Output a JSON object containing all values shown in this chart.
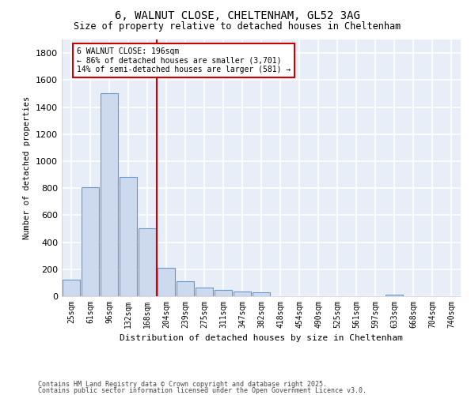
{
  "title_line1": "6, WALNUT CLOSE, CHELTENHAM, GL52 3AG",
  "title_line2": "Size of property relative to detached houses in Cheltenham",
  "xlabel": "Distribution of detached houses by size in Cheltenham",
  "ylabel": "Number of detached properties",
  "bar_labels": [
    "25sqm",
    "61sqm",
    "96sqm",
    "132sqm",
    "168sqm",
    "204sqm",
    "239sqm",
    "275sqm",
    "311sqm",
    "347sqm",
    "382sqm",
    "418sqm",
    "454sqm",
    "490sqm",
    "525sqm",
    "561sqm",
    "597sqm",
    "633sqm",
    "668sqm",
    "704sqm",
    "740sqm"
  ],
  "bar_values": [
    125,
    805,
    1500,
    885,
    500,
    210,
    110,
    65,
    48,
    33,
    28,
    0,
    0,
    0,
    0,
    0,
    0,
    10,
    0,
    0,
    0
  ],
  "bar_color": "#ccd9ee",
  "bar_edge_color": "#6699cc",
  "vline_x": 4.5,
  "vline_color": "#cc0000",
  "annotation_title": "6 WALNUT CLOSE: 196sqm",
  "annotation_line1": "← 86% of detached houses are smaller (3,701)",
  "annotation_line2": "14% of semi-detached houses are larger (581) →",
  "annotation_box_color": "#cc0000",
  "ylim": [
    0,
    1900
  ],
  "yticks": [
    0,
    200,
    400,
    600,
    800,
    1000,
    1200,
    1400,
    1600,
    1800
  ],
  "plot_bg_color": "#e8eef8",
  "fig_bg_color": "#ffffff",
  "grid_color": "#ffffff",
  "footer_line1": "Contains HM Land Registry data © Crown copyright and database right 2025.",
  "footer_line2": "Contains public sector information licensed under the Open Government Licence v3.0."
}
